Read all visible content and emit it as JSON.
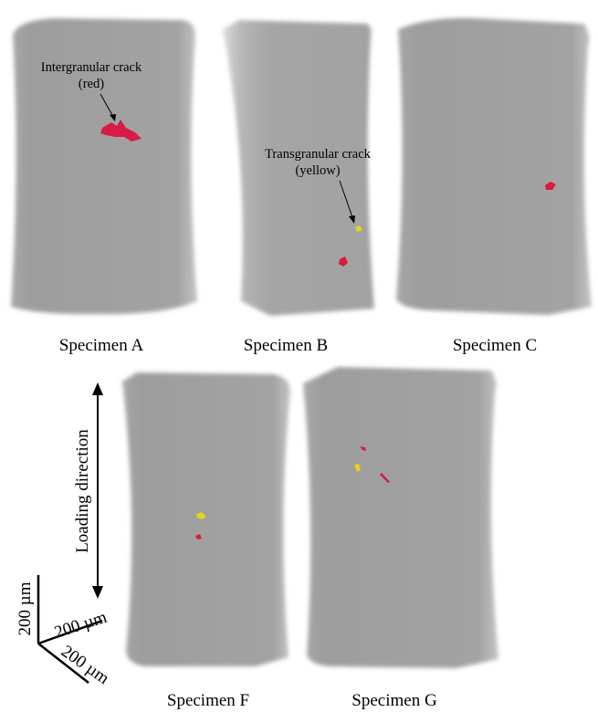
{
  "specimens": [
    {
      "label": "Specimen A"
    },
    {
      "label": "Specimen B"
    },
    {
      "label": "Specimen C"
    },
    {
      "label": "Specimen F"
    },
    {
      "label": "Specimen G"
    }
  ],
  "annotations": [
    {
      "line1": "Intergranular crack",
      "line2": "(red)"
    },
    {
      "line1": "Transgranular crack",
      "line2": "(yellow)"
    }
  ],
  "loading_direction": "Loading direction",
  "scale_bar": {
    "vertical": "200 µm",
    "horizontal": "200 µm",
    "depth": "200 µm"
  }
}
